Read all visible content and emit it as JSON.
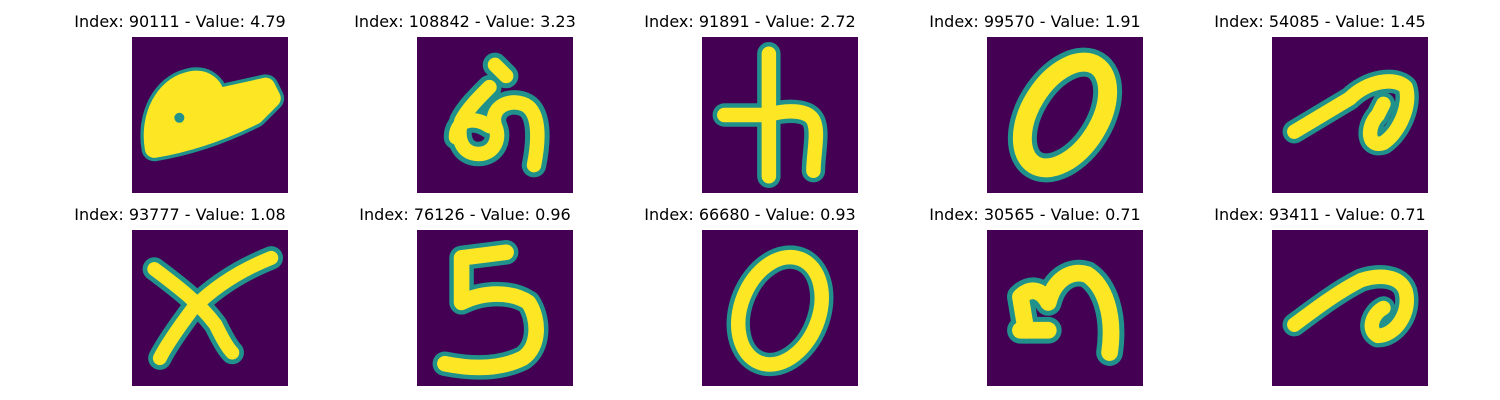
{
  "colors": {
    "background": "#440154",
    "mid": "#21918c",
    "foreground": "#fde725"
  },
  "panels": [
    {
      "title": "Index: 90111 - Value: 4.79",
      "glyph": "shape-blob"
    },
    {
      "title": "Index: 108842 - Value: 3.23",
      "glyph": "shape-loop-stroke"
    },
    {
      "title": "Index: 91891 - Value: 2.72",
      "glyph": "h"
    },
    {
      "title": "Index: 99570 - Value: 1.91",
      "glyph": "0"
    },
    {
      "title": "Index: 54085 - Value: 1.45",
      "glyph": "shape-curl"
    },
    {
      "title": "Index: 93777 - Value: 1.08",
      "glyph": "x"
    },
    {
      "title": "Index: 76126 - Value: 0.96",
      "glyph": "5"
    },
    {
      "title": "Index: 66680 - Value: 0.93",
      "glyph": "0"
    },
    {
      "title": "Index: 30565 - Value: 0.71",
      "glyph": "shape-hook"
    },
    {
      "title": "Index: 93411 - Value: 0.71",
      "glyph": "shape-curl"
    }
  ]
}
